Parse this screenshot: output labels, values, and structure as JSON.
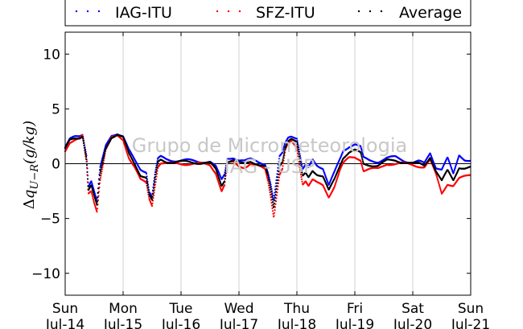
{
  "chart_data": {
    "type": "scatter",
    "ylabel": "Δq_{U−R}(g/kg)",
    "ylabel_parts": {
      "delta": "Δ",
      "sub": "U−R",
      "rest": "(g/kg)"
    },
    "watermark": [
      "Grupo de Micrometeorologia",
      "IAG - USP"
    ],
    "ylim": [
      -12,
      12
    ],
    "yticks": [
      10,
      5,
      0,
      -5,
      -10
    ],
    "ytick_labels": [
      "10",
      "5",
      "0",
      "−5",
      "−10"
    ],
    "xlim": [
      0,
      7
    ],
    "xticks": [
      {
        "day": "Sun",
        "date": "Jul-14"
      },
      {
        "day": "Mon",
        "date": "Jul-15"
      },
      {
        "day": "Tue",
        "date": "Jul-16"
      },
      {
        "day": "Wed",
        "date": "Jul-17"
      },
      {
        "day": "Thu",
        "date": "Jul-18"
      },
      {
        "day": "Fri",
        "date": "Jul-19"
      },
      {
        "day": "Sat",
        "date": "Jul-20"
      },
      {
        "day": "Sun",
        "date": "Jul-21"
      }
    ],
    "grid": true,
    "legend_position": "top",
    "series": [
      {
        "name": "IAG-ITU",
        "color": "#0000ff"
      },
      {
        "name": "SFZ-ITU",
        "color": "#ff0000"
      },
      {
        "name": "Average",
        "color": "#000000"
      }
    ],
    "x_days": [
      0,
      0.08,
      0.16,
      0.25,
      0.3,
      0.37,
      0.4,
      0.45,
      0.5,
      0.55,
      0.6,
      0.7,
      0.8,
      0.9,
      1.0,
      1.1,
      1.2,
      1.3,
      1.4,
      1.45,
      1.5,
      1.55,
      1.6,
      1.65,
      1.75,
      1.9,
      2.1,
      2.3,
      2.5,
      2.6,
      2.7,
      2.75,
      2.8,
      2.9,
      3.0,
      3.1,
      3.2,
      3.3,
      3.45,
      3.5,
      3.55,
      3.6,
      3.7,
      3.75,
      3.8,
      3.85,
      3.9,
      4.0,
      4.05,
      4.1,
      4.15,
      4.2,
      4.27,
      4.35,
      4.45,
      4.55,
      4.65,
      4.75,
      4.8,
      4.9,
      5.0,
      5.1,
      5.15,
      5.25,
      5.4,
      5.55,
      5.7,
      5.85,
      6.0,
      6.1,
      6.2,
      6.3,
      6.4,
      6.5,
      6.6,
      6.7,
      6.8,
      6.9,
      7.0
    ],
    "iag_itu": [
      1.5,
      2.2,
      2.4,
      2.5,
      2.7,
      0.8,
      -2.0,
      -1.5,
      -2.5,
      -3.5,
      -0.5,
      1.6,
      2.6,
      2.8,
      2.5,
      1.2,
      0.3,
      -0.5,
      -0.7,
      -2.5,
      -3.0,
      -1.0,
      0.4,
      0.6,
      0.4,
      0.3,
      0.3,
      0.2,
      0.2,
      -0.3,
      -1.5,
      -1.0,
      0.5,
      0.6,
      0.3,
      0.2,
      0.4,
      0.3,
      0.0,
      -0.8,
      -2.0,
      -3.5,
      0.6,
      1.0,
      2.0,
      2.5,
      2.6,
      2.3,
      0.8,
      -0.6,
      -0.2,
      -0.4,
      0.4,
      -0.1,
      -0.4,
      -2.0,
      -0.8,
      0.5,
      1.2,
      1.6,
      1.8,
      1.5,
      0.5,
      0.3,
      0.2,
      0.5,
      0.6,
      0.3,
      0.1,
      0.2,
      0.0,
      1.0,
      -0.3,
      -0.5,
      0.5,
      -1.0,
      0.8,
      0.4,
      0.3
    ],
    "sfz_itu": [
      1.2,
      2.0,
      2.2,
      2.3,
      2.5,
      0.0,
      -2.8,
      -2.5,
      -3.5,
      -4.3,
      -1.5,
      1.3,
      2.3,
      2.5,
      2.2,
      0.6,
      -0.3,
      -1.5,
      -1.8,
      -3.2,
      -3.8,
      -2.0,
      -0.2,
      0.1,
      0.0,
      0.0,
      0.0,
      0.0,
      -0.1,
      -0.8,
      -2.5,
      -2.0,
      0.0,
      0.1,
      -0.2,
      -0.3,
      0.0,
      -0.2,
      -0.5,
      -1.5,
      -3.0,
      -4.8,
      -1.0,
      -0.5,
      1.2,
      1.8,
      2.0,
      1.5,
      -0.3,
      -1.8,
      -1.5,
      -2.0,
      -1.5,
      -1.8,
      -2.0,
      -3.0,
      -2.0,
      -0.5,
      0.0,
      0.5,
      0.6,
      0.4,
      -0.6,
      -0.5,
      -0.5,
      0.0,
      0.0,
      0.0,
      -0.1,
      -0.2,
      -0.3,
      0.3,
      -1.0,
      -2.7,
      -1.8,
      -2.0,
      -1.4,
      -1.2,
      -1.0
    ],
    "average": [
      1.3,
      2.1,
      2.3,
      2.4,
      2.6,
      0.4,
      -2.4,
      -2.0,
      -3.0,
      -3.9,
      -1.0,
      1.45,
      2.45,
      2.65,
      2.35,
      0.9,
      0.0,
      -1.0,
      -1.25,
      -2.85,
      -3.4,
      -1.5,
      0.1,
      0.35,
      0.2,
      0.15,
      0.15,
      0.1,
      0.05,
      -0.55,
      -2.0,
      -1.5,
      0.25,
      0.35,
      0.05,
      -0.05,
      0.2,
      0.05,
      -0.25,
      -1.15,
      -2.5,
      -4.15,
      -0.2,
      0.25,
      1.6,
      2.15,
      2.3,
      1.9,
      0.25,
      -1.2,
      -0.85,
      -1.2,
      -0.55,
      -0.95,
      -1.2,
      -2.5,
      -1.4,
      0.0,
      0.6,
      1.05,
      1.2,
      0.95,
      -0.05,
      -0.1,
      -0.15,
      0.25,
      0.3,
      0.15,
      0.0,
      0.0,
      -0.15,
      0.65,
      -0.65,
      -1.6,
      -0.65,
      -1.5,
      -0.3,
      -0.4,
      -0.35
    ]
  }
}
